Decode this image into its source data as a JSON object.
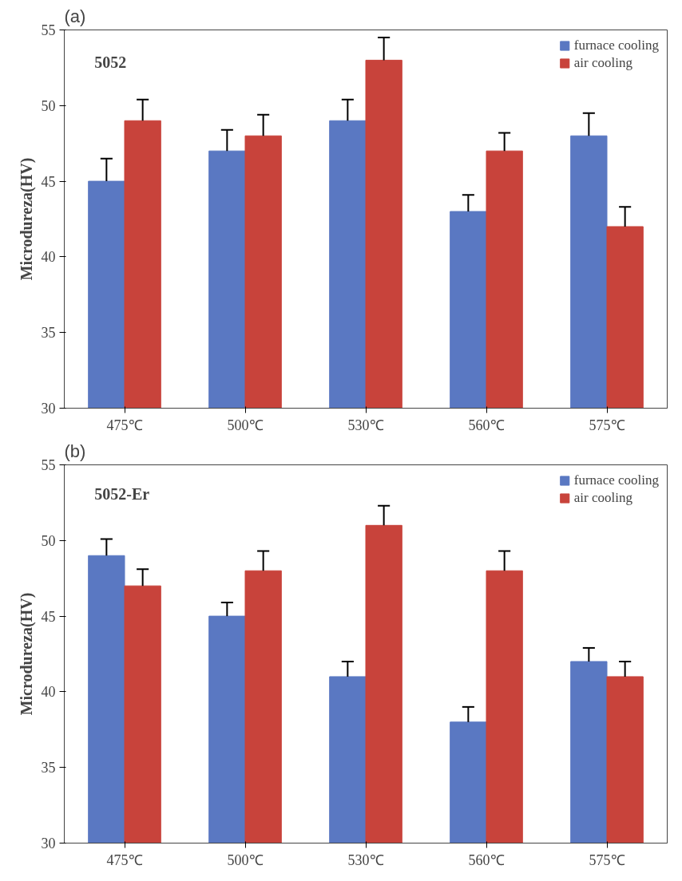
{
  "chart_data": [
    {
      "type": "bar",
      "title": "(a)",
      "subtitle": "5052",
      "ylabel": "Microdureza(HV)",
      "categories": [
        "475℃",
        "500℃",
        "530℃",
        "560℃",
        "575℃"
      ],
      "ylim": [
        30,
        55
      ],
      "yticks": [
        30,
        35,
        40,
        45,
        50,
        55
      ],
      "grid": false,
      "legend": "top right",
      "series": [
        {
          "name": "furnace cooling",
          "color": "#5a78c2",
          "values": [
            45,
            47,
            49,
            43,
            48
          ],
          "errors": [
            [
              45,
              46.5
            ],
            [
              47,
              48.4
            ],
            [
              49,
              50.4
            ],
            [
              43,
              44.1
            ],
            [
              48,
              49.5
            ]
          ]
        },
        {
          "name": "air cooling",
          "color": "#c8433b",
          "values": [
            49,
            48,
            53,
            47,
            42
          ],
          "errors": [
            [
              49,
              50.4
            ],
            [
              48,
              49.4
            ],
            [
              53,
              54.5
            ],
            [
              47,
              48.2
            ],
            [
              42,
              43.3
            ]
          ]
        }
      ]
    },
    {
      "type": "bar",
      "title": "(b)",
      "subtitle": "5052-Er",
      "ylabel": "Microdureza(HV)",
      "categories": [
        "475℃",
        "500℃",
        "530℃",
        "560℃",
        "575℃"
      ],
      "ylim": [
        30,
        55
      ],
      "yticks": [
        30,
        35,
        40,
        45,
        50,
        55
      ],
      "grid": false,
      "legend": "top right",
      "series": [
        {
          "name": "furnace cooling",
          "color": "#5a78c2",
          "values": [
            49,
            45,
            41,
            38,
            42
          ],
          "errors": [
            [
              49,
              50.1
            ],
            [
              45,
              45.9
            ],
            [
              41,
              42
            ],
            [
              38,
              39
            ],
            [
              42,
              42.9
            ]
          ]
        },
        {
          "name": "air cooling",
          "color": "#c8433b",
          "values": [
            47,
            48,
            51,
            48,
            41
          ],
          "errors": [
            [
              47,
              48.1
            ],
            [
              48,
              49.3
            ],
            [
              51,
              52.3
            ],
            [
              48,
              49.3
            ],
            [
              41,
              42
            ]
          ]
        }
      ]
    }
  ]
}
